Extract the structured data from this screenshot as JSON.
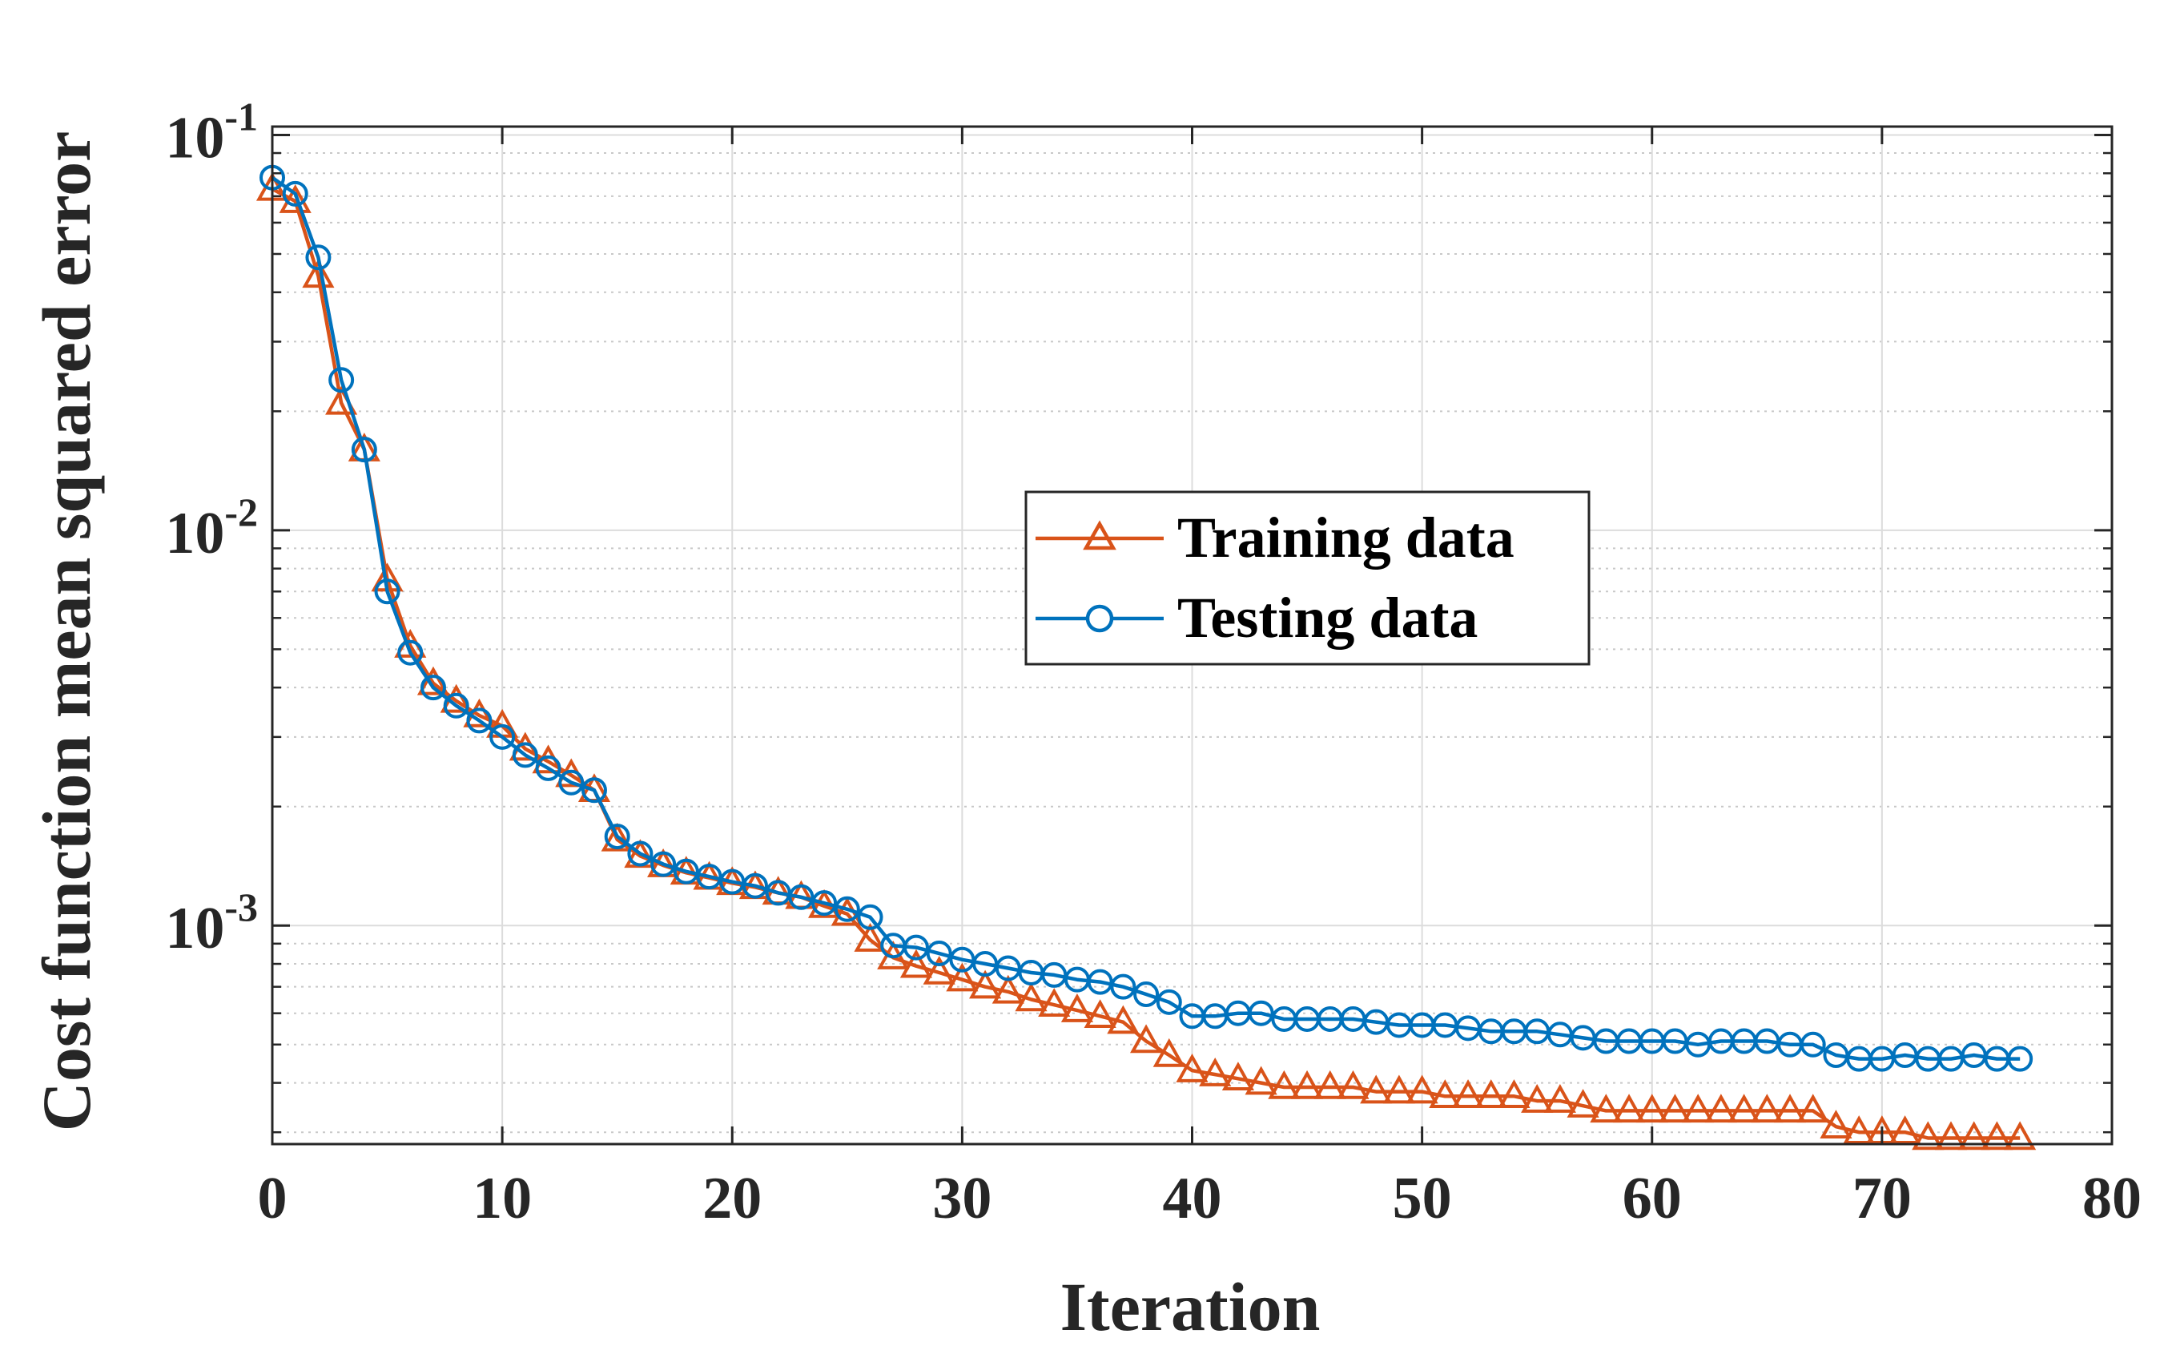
{
  "chart_data": {
    "type": "line",
    "xlabel": "Iteration",
    "ylabel": "Cost function mean squared error",
    "yscale": "log",
    "xlim": [
      0,
      80
    ],
    "ylim": [
      0.00028,
      0.105
    ],
    "x_ticks": [
      0,
      10,
      20,
      30,
      40,
      50,
      60,
      70,
      80
    ],
    "x_tick_labels": [
      "0",
      "10",
      "20",
      "30",
      "40",
      "50",
      "60",
      "70",
      "80"
    ],
    "y_ticks": [
      {
        "value": 0.1,
        "base": "10",
        "exp": "-1"
      },
      {
        "value": 0.01,
        "base": "10",
        "exp": "-2"
      },
      {
        "value": 0.001,
        "base": "10",
        "exp": "-3"
      }
    ],
    "grid": true,
    "legend_position": "center-right",
    "series": [
      {
        "name": "Training data",
        "color": "#D95319",
        "marker": "triangle",
        "x": [
          0,
          1,
          2,
          3,
          4,
          5,
          6,
          7,
          8,
          9,
          10,
          11,
          12,
          13,
          14,
          15,
          16,
          17,
          18,
          19,
          20,
          21,
          22,
          23,
          24,
          25,
          26,
          27,
          28,
          29,
          30,
          31,
          32,
          33,
          34,
          35,
          36,
          37,
          38,
          39,
          40,
          41,
          42,
          43,
          44,
          45,
          46,
          47,
          48,
          49,
          50,
          51,
          52,
          53,
          54,
          55,
          56,
          57,
          58,
          59,
          60,
          61,
          62,
          63,
          64,
          65,
          66,
          67,
          68,
          69,
          70,
          71,
          72,
          73,
          74,
          75,
          76
        ],
        "values": [
          0.073,
          0.068,
          0.044,
          0.021,
          0.016,
          0.0075,
          0.0051,
          0.0041,
          0.0037,
          0.0034,
          0.0032,
          0.0028,
          0.0026,
          0.0024,
          0.0022,
          0.00165,
          0.0015,
          0.00142,
          0.00136,
          0.00132,
          0.00128,
          0.00125,
          0.00121,
          0.00118,
          0.00112,
          0.00107,
          0.00092,
          0.00083,
          0.00079,
          0.00076,
          0.00073,
          0.0007,
          0.00068,
          0.00065,
          0.00063,
          0.00061,
          0.00059,
          0.00057,
          0.00051,
          0.00047,
          0.00043,
          0.00042,
          0.00041,
          0.0004,
          0.00039,
          0.00039,
          0.00039,
          0.00039,
          0.00038,
          0.00038,
          0.00038,
          0.00037,
          0.00037,
          0.00037,
          0.00037,
          0.00036,
          0.00036,
          0.00035,
          0.00034,
          0.00034,
          0.00034,
          0.00034,
          0.00034,
          0.00034,
          0.00034,
          0.00034,
          0.00034,
          0.00034,
          0.00031,
          0.0003,
          0.0003,
          0.0003,
          0.00029,
          0.00029,
          0.00029,
          0.00029,
          0.00029
        ]
      },
      {
        "name": "Testing data",
        "color": "#0072BD",
        "marker": "circle",
        "x": [
          0,
          1,
          2,
          3,
          4,
          5,
          6,
          7,
          8,
          9,
          10,
          11,
          12,
          13,
          14,
          15,
          16,
          17,
          18,
          19,
          20,
          21,
          22,
          23,
          24,
          25,
          26,
          27,
          28,
          29,
          30,
          31,
          32,
          33,
          34,
          35,
          36,
          37,
          38,
          39,
          40,
          41,
          42,
          43,
          44,
          45,
          46,
          47,
          48,
          49,
          50,
          51,
          52,
          53,
          54,
          55,
          56,
          57,
          58,
          59,
          60,
          61,
          62,
          63,
          64,
          65,
          66,
          67,
          68,
          69,
          70,
          71,
          72,
          73,
          74,
          75,
          76
        ],
        "values": [
          0.078,
          0.071,
          0.049,
          0.024,
          0.016,
          0.007,
          0.0049,
          0.004,
          0.0036,
          0.0033,
          0.003,
          0.0027,
          0.0025,
          0.0023,
          0.0022,
          0.00168,
          0.00152,
          0.00143,
          0.00137,
          0.00133,
          0.00129,
          0.00126,
          0.00121,
          0.00118,
          0.00114,
          0.0011,
          0.00105,
          0.00089,
          0.00088,
          0.00085,
          0.00082,
          0.0008,
          0.00078,
          0.00076,
          0.00075,
          0.00073,
          0.00072,
          0.0007,
          0.00067,
          0.00064,
          0.00059,
          0.00059,
          0.0006,
          0.0006,
          0.00058,
          0.00058,
          0.00058,
          0.00058,
          0.00057,
          0.00056,
          0.00056,
          0.00056,
          0.00055,
          0.00054,
          0.00054,
          0.00054,
          0.00053,
          0.00052,
          0.00051,
          0.00051,
          0.00051,
          0.00051,
          0.0005,
          0.00051,
          0.00051,
          0.00051,
          0.0005,
          0.0005,
          0.00047,
          0.00046,
          0.00046,
          0.00047,
          0.00046,
          0.00046,
          0.00047,
          0.00046,
          0.00046
        ]
      }
    ]
  }
}
